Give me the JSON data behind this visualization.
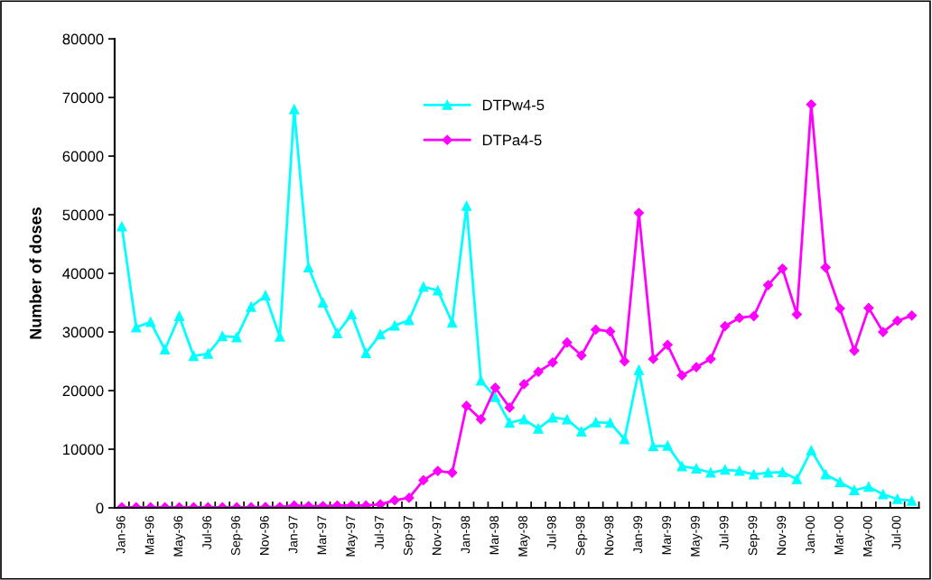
{
  "chart_data": {
    "type": "line",
    "ylabel": "Number of doses",
    "categories": [
      "Jan-96",
      null,
      "Mar-96",
      null,
      "May-96",
      null,
      "Jul-96",
      null,
      "Sep-96",
      null,
      "Nov-96",
      null,
      "Jan-97",
      null,
      "Mar-97",
      null,
      "May-97",
      null,
      "Jul-97",
      null,
      "Sep-97",
      null,
      "Nov-97",
      null,
      "Jan-98",
      null,
      "Mar-98",
      null,
      "May-98",
      null,
      "Jul-98",
      null,
      "Sep-98",
      null,
      "Nov-98",
      null,
      "Jan-99",
      null,
      "Mar-99",
      null,
      "May-99",
      null,
      "Jul-99",
      null,
      "Sep-99",
      null,
      "Nov-99",
      null,
      "Jan-00",
      null,
      "Mar-00",
      null,
      "May-00",
      null,
      "Jul-00",
      null
    ],
    "series": [
      {
        "name": "DTPw4-5",
        "color": "#00ffff",
        "marker": "triangle",
        "values": [
          48000,
          30800,
          31700,
          27000,
          32700,
          25900,
          26300,
          29300,
          29100,
          34300,
          36200,
          29200,
          68000,
          41000,
          35000,
          29800,
          33000,
          26400,
          29600,
          31100,
          32000,
          37700,
          37100,
          31600,
          51500,
          21700,
          18900,
          14500,
          15100,
          13500,
          15400,
          15100,
          13000,
          14600,
          14500,
          11700,
          23500,
          10500,
          10600,
          7100,
          6700,
          6000,
          6500,
          6300,
          5700,
          6000,
          6100,
          4900,
          9800,
          5700,
          4400,
          3000,
          3600,
          2300,
          1500,
          1200
        ]
      },
      {
        "name": "DTPa4-5",
        "color": "#ff00ff",
        "marker": "diamond",
        "values": [
          100,
          100,
          100,
          100,
          100,
          100,
          100,
          100,
          100,
          100,
          150,
          150,
          400,
          300,
          300,
          400,
          400,
          400,
          600,
          1300,
          1700,
          4700,
          6300,
          6000,
          17400,
          15100,
          20500,
          17100,
          21100,
          23200,
          24800,
          28200,
          26000,
          30400,
          30100,
          25000,
          50300,
          25400,
          27800,
          22600,
          24000,
          25400,
          31000,
          32400,
          32700,
          38000,
          40800,
          33000,
          68800,
          41000,
          34000,
          26800,
          34100,
          30000,
          31900,
          32800
        ]
      }
    ],
    "ylim": [
      0,
      80000
    ],
    "yticks": [
      0,
      10000,
      20000,
      30000,
      40000,
      50000,
      60000,
      70000,
      80000
    ],
    "grid": false,
    "legend": "top",
    "line_style": "solid"
  }
}
